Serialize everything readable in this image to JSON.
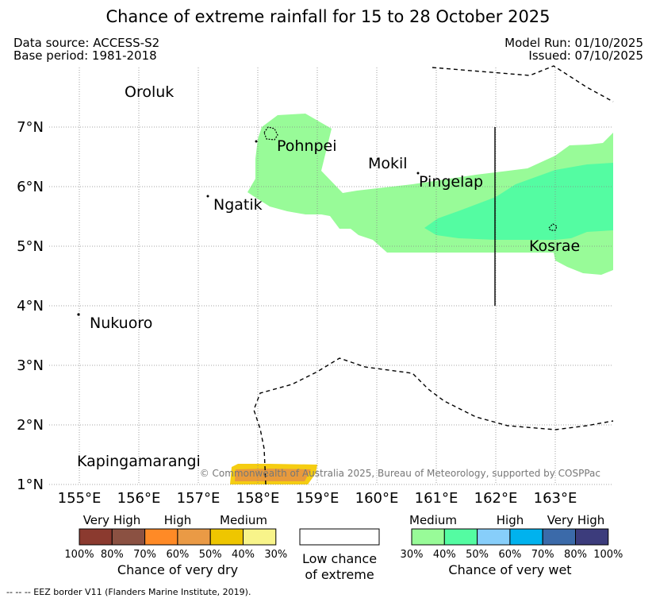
{
  "header": {
    "title": "Chance of extreme rainfall for 15 to 28 October 2025",
    "data_source": "Data source: ACCESS-S2",
    "base_period": "Base period: 1981-2018",
    "model_run": "Model Run: 01/10/2025",
    "issued": "Issued: 07/10/2025"
  },
  "map": {
    "lon_labels": [
      "155°E",
      "156°E",
      "157°E",
      "158°E",
      "159°E",
      "160°E",
      "161°E",
      "162°E",
      "163°E"
    ],
    "lat_labels": [
      "7°N",
      "6°N",
      "5°N",
      "4°N",
      "3°N",
      "2°N",
      "1°N"
    ],
    "places": [
      "Oroluk",
      "Pohnpei",
      "Mokil",
      "Pingelap",
      "Ngatik",
      "Kosrae",
      "Nukuoro",
      "Kapingamarangi"
    ],
    "copyright": "© Commonwealth of Australia 2025, Bureau of Meteorology, supported by COSPPac",
    "colors": {
      "wet_medium_30_40": "#98fb98",
      "wet_medium_40_50": "#54fca2",
      "dry_40_50_orange": "#e89a3c",
      "dry_30_40_yellow": "#f5cd12"
    }
  },
  "legend": {
    "dry": {
      "categories": [
        "Very High",
        "High",
        "Medium"
      ],
      "ticks": [
        "100%",
        "80%",
        "70%",
        "60%",
        "50%",
        "40%",
        "30%"
      ],
      "label": "Chance of very dry",
      "colors": [
        "#8b3a2f",
        "#8b5142",
        "#ff8a26",
        "#ea9a45",
        "#eec600",
        "#f8f48a"
      ]
    },
    "neutral": {
      "line1": "Low chance",
      "line2": "of extreme"
    },
    "wet": {
      "categories": [
        "Medium",
        "High",
        "Very High"
      ],
      "ticks": [
        "30%",
        "40%",
        "50%",
        "60%",
        "70%",
        "80%",
        "100%"
      ],
      "label": "Chance of very wet",
      "colors": [
        "#98fb98",
        "#54fca2",
        "#87cefa",
        "#00b2ee",
        "#3b6aa9",
        "#3c3c7c"
      ]
    }
  },
  "footnote": "--  --  -- EEZ border V11 (Flanders Marine Institute, 2019)."
}
